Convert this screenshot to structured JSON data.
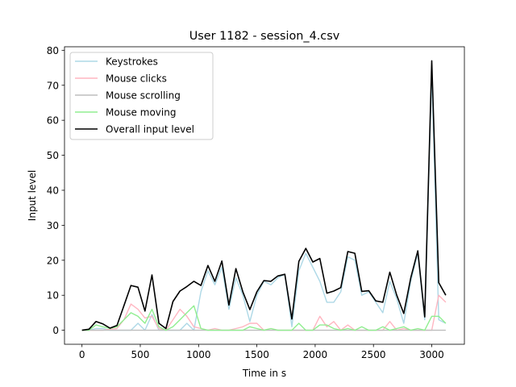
{
  "chart_data": {
    "type": "line",
    "title": "User 1182 - session_4.csv",
    "xlabel": "Time in s",
    "ylabel": "Input level",
    "xlim": [
      -150,
      3280
    ],
    "ylim": [
      -4,
      81
    ],
    "xticks": [
      0,
      500,
      1000,
      1500,
      2000,
      2500,
      3000
    ],
    "yticks": [
      0,
      10,
      20,
      30,
      40,
      50,
      60,
      70,
      80
    ],
    "legend_position": "top-left",
    "grid": false,
    "series": [
      {
        "name": "Keystrokes",
        "color": "#add8e6",
        "points": [
          [
            0,
            0
          ],
          [
            60,
            0
          ],
          [
            120,
            0.5
          ],
          [
            180,
            0.5
          ],
          [
            240,
            0
          ],
          [
            300,
            0
          ],
          [
            360,
            0
          ],
          [
            420,
            0
          ],
          [
            480,
            2
          ],
          [
            540,
            0
          ],
          [
            600,
            4.5
          ],
          [
            660,
            0
          ],
          [
            720,
            0
          ],
          [
            780,
            0
          ],
          [
            840,
            0
          ],
          [
            900,
            2
          ],
          [
            960,
            0
          ],
          [
            1020,
            11
          ],
          [
            1080,
            17
          ],
          [
            1140,
            13
          ],
          [
            1200,
            18
          ],
          [
            1260,
            6
          ],
          [
            1320,
            15
          ],
          [
            1380,
            10
          ],
          [
            1440,
            2.5
          ],
          [
            1500,
            10
          ],
          [
            1560,
            14
          ],
          [
            1620,
            13
          ],
          [
            1680,
            15
          ],
          [
            1740,
            16
          ],
          [
            1800,
            1
          ],
          [
            1860,
            17
          ],
          [
            1920,
            22
          ],
          [
            1980,
            18
          ],
          [
            2040,
            14
          ],
          [
            2100,
            8
          ],
          [
            2160,
            8
          ],
          [
            2220,
            11
          ],
          [
            2280,
            21
          ],
          [
            2340,
            20
          ],
          [
            2400,
            10
          ],
          [
            2460,
            11
          ],
          [
            2520,
            8
          ],
          [
            2580,
            5
          ],
          [
            2640,
            14
          ],
          [
            2700,
            9
          ],
          [
            2760,
            2
          ],
          [
            2820,
            14
          ],
          [
            2880,
            22
          ],
          [
            2940,
            3
          ],
          [
            3000,
            73
          ],
          [
            3060,
            3
          ],
          [
            3120,
            2
          ]
        ]
      },
      {
        "name": "Mouse clicks",
        "color": "#ffb6c1",
        "points": [
          [
            0,
            0
          ],
          [
            60,
            0
          ],
          [
            120,
            0
          ],
          [
            180,
            0
          ],
          [
            240,
            0.3
          ],
          [
            300,
            0.5
          ],
          [
            360,
            3
          ],
          [
            420,
            7.5
          ],
          [
            480,
            6
          ],
          [
            540,
            3.5
          ],
          [
            600,
            4
          ],
          [
            660,
            0.5
          ],
          [
            720,
            0
          ],
          [
            780,
            3
          ],
          [
            840,
            6
          ],
          [
            900,
            4
          ],
          [
            960,
            1
          ],
          [
            1020,
            0.5
          ],
          [
            1080,
            0
          ],
          [
            1140,
            0.5
          ],
          [
            1200,
            0
          ],
          [
            1260,
            0
          ],
          [
            1320,
            0.5
          ],
          [
            1380,
            1
          ],
          [
            1440,
            2
          ],
          [
            1500,
            2
          ],
          [
            1560,
            0
          ],
          [
            1620,
            0.5
          ],
          [
            1680,
            0
          ],
          [
            1740,
            0
          ],
          [
            1800,
            0
          ],
          [
            1860,
            0
          ],
          [
            1920,
            0
          ],
          [
            1980,
            0
          ],
          [
            2040,
            4
          ],
          [
            2100,
            1
          ],
          [
            2160,
            2.5
          ],
          [
            2220,
            0
          ],
          [
            2280,
            1.5
          ],
          [
            2340,
            0
          ],
          [
            2400,
            0
          ],
          [
            2460,
            0
          ],
          [
            2520,
            0
          ],
          [
            2580,
            0
          ],
          [
            2640,
            2.5
          ],
          [
            2700,
            0
          ],
          [
            2760,
            0.5
          ],
          [
            2820,
            0
          ],
          [
            2880,
            0
          ],
          [
            2940,
            0
          ],
          [
            3000,
            0
          ],
          [
            3060,
            10
          ],
          [
            3120,
            8
          ]
        ]
      },
      {
        "name": "Mouse scrolling",
        "color": "#bebebe",
        "points": [
          [
            0,
            0
          ],
          [
            3120,
            0
          ]
        ]
      },
      {
        "name": "Mouse moving",
        "color": "#90ee90",
        "points": [
          [
            0,
            0
          ],
          [
            60,
            0
          ],
          [
            120,
            1.5
          ],
          [
            180,
            1
          ],
          [
            240,
            0.5
          ],
          [
            300,
            1
          ],
          [
            360,
            3
          ],
          [
            420,
            5
          ],
          [
            480,
            4
          ],
          [
            540,
            2
          ],
          [
            600,
            6
          ],
          [
            660,
            1
          ],
          [
            720,
            0
          ],
          [
            780,
            1
          ],
          [
            840,
            3
          ],
          [
            900,
            5
          ],
          [
            960,
            7
          ],
          [
            1020,
            0.5
          ],
          [
            1080,
            0
          ],
          [
            1140,
            0
          ],
          [
            1200,
            0
          ],
          [
            1260,
            0
          ],
          [
            1320,
            0
          ],
          [
            1380,
            0
          ],
          [
            1440,
            1
          ],
          [
            1500,
            0.5
          ],
          [
            1560,
            0
          ],
          [
            1620,
            0.5
          ],
          [
            1680,
            0
          ],
          [
            1740,
            0
          ],
          [
            1800,
            0
          ],
          [
            1860,
            2
          ],
          [
            1920,
            0
          ],
          [
            1980,
            0
          ],
          [
            2040,
            1.5
          ],
          [
            2100,
            1.5
          ],
          [
            2160,
            0.5
          ],
          [
            2220,
            0
          ],
          [
            2280,
            0.5
          ],
          [
            2340,
            0
          ],
          [
            2400,
            1
          ],
          [
            2460,
            0
          ],
          [
            2520,
            0
          ],
          [
            2580,
            1
          ],
          [
            2640,
            0
          ],
          [
            2700,
            0.5
          ],
          [
            2760,
            1
          ],
          [
            2820,
            0
          ],
          [
            2880,
            0.5
          ],
          [
            2940,
            0
          ],
          [
            3000,
            4
          ],
          [
            3060,
            4
          ],
          [
            3120,
            2
          ]
        ]
      },
      {
        "name": "Overall input level",
        "color": "#000000",
        "points": [
          [
            0,
            0
          ],
          [
            60,
            0.3
          ],
          [
            120,
            2.5
          ],
          [
            180,
            1.8
          ],
          [
            240,
            0.6
          ],
          [
            300,
            1.4
          ],
          [
            360,
            7
          ],
          [
            420,
            12.8
          ],
          [
            480,
            12.3
          ],
          [
            540,
            5.5
          ],
          [
            600,
            15.8
          ],
          [
            660,
            2
          ],
          [
            720,
            0.5
          ],
          [
            780,
            8.2
          ],
          [
            840,
            11.2
          ],
          [
            900,
            12.5
          ],
          [
            960,
            14
          ],
          [
            1020,
            12.8
          ],
          [
            1080,
            18.5
          ],
          [
            1140,
            14
          ],
          [
            1200,
            19.8
          ],
          [
            1260,
            7.2
          ],
          [
            1320,
            17.6
          ],
          [
            1380,
            11
          ],
          [
            1440,
            5.9
          ],
          [
            1500,
            11
          ],
          [
            1560,
            14.2
          ],
          [
            1620,
            14
          ],
          [
            1680,
            15.5
          ],
          [
            1740,
            16
          ],
          [
            1800,
            3.2
          ],
          [
            1860,
            19.7
          ],
          [
            1920,
            23.4
          ],
          [
            1980,
            19.5
          ],
          [
            2040,
            20.5
          ],
          [
            2100,
            10.6
          ],
          [
            2160,
            11.2
          ],
          [
            2220,
            12.2
          ],
          [
            2280,
            22.5
          ],
          [
            2340,
            22
          ],
          [
            2400,
            11.1
          ],
          [
            2460,
            11.3
          ],
          [
            2520,
            8.4
          ],
          [
            2580,
            8
          ],
          [
            2640,
            16.6
          ],
          [
            2700,
            10
          ],
          [
            2760,
            4.8
          ],
          [
            2820,
            15
          ],
          [
            2880,
            22.7
          ],
          [
            2940,
            3.8
          ],
          [
            3000,
            77
          ],
          [
            3060,
            13.6
          ],
          [
            3120,
            10
          ]
        ]
      }
    ]
  }
}
